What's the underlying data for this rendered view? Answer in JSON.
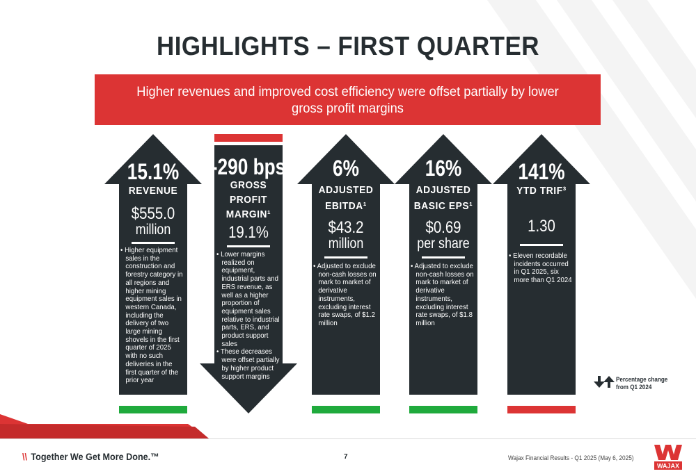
{
  "title": "HIGHLIGHTS – FIRST QUARTER",
  "banner": "Higher revenues and improved cost efficiency were offset partially by lower gross profit margins",
  "colors": {
    "dark": "#262d31",
    "red": "#dc3434",
    "green": "#1faa3c",
    "white": "#ffffff"
  },
  "cards": [
    {
      "direction": "up",
      "status": "positive",
      "big": "15.1%",
      "label_lines": [
        "REVENUE"
      ],
      "value_lines": [
        "$555.0",
        "million"
      ],
      "bullets": [
        "Higher equipment sales in the construction and forestry category in all regions and higher mining equipment sales in western Canada, including the delivery of two large mining shovels in the first quarter of 2025 with no such deliveries in the first quarter of the prior year"
      ]
    },
    {
      "direction": "down",
      "status": "negative",
      "big": "-290 bps",
      "label_lines": [
        "GROSS",
        "PROFIT",
        "MARGIN¹"
      ],
      "value_lines": [
        "19.1%"
      ],
      "bullets": [
        "Lower margins realized on equipment, industrial parts and ERS revenue, as well as a higher proportion of equipment sales relative to industrial parts, ERS, and product support sales",
        "These decreases were offset partially by higher product support margins"
      ]
    },
    {
      "direction": "up",
      "status": "positive",
      "big": "6%",
      "label_lines": [
        "ADJUSTED",
        "EBITDA¹"
      ],
      "value_lines": [
        "$43.2",
        "million"
      ],
      "bullets": [
        "Adjusted to exclude non-cash losses on mark to market of derivative instruments, excluding interest rate swaps, of $1.2 million"
      ]
    },
    {
      "direction": "up",
      "status": "positive",
      "big": "16%",
      "label_lines": [
        "ADJUSTED",
        "BASIC EPS¹"
      ],
      "value_lines": [
        "$0.69",
        "per share"
      ],
      "bullets": [
        "Adjusted to exclude non-cash losses on mark to market of derivative instruments, excluding interest rate swaps, of $1.8 million"
      ]
    },
    {
      "direction": "up",
      "status": "negative",
      "big": "141%",
      "label_lines": [
        "YTD TRIF³"
      ],
      "value_lines": [
        "1.30"
      ],
      "bullets": [
        "Eleven recordable incidents occurred in Q1 2025, six more than Q1 2024"
      ]
    }
  ],
  "legend": {
    "icon": "up-down-arrows-icon",
    "text": "Percentage change from Q1 2024"
  },
  "footer": {
    "slashes": "\\\\",
    "tagline": "Together We Get More Done.™",
    "page": "7",
    "source": "Wajax Financial Results - Q1 2025 (May 6, 2025)",
    "logo_text": "WAJAX"
  }
}
